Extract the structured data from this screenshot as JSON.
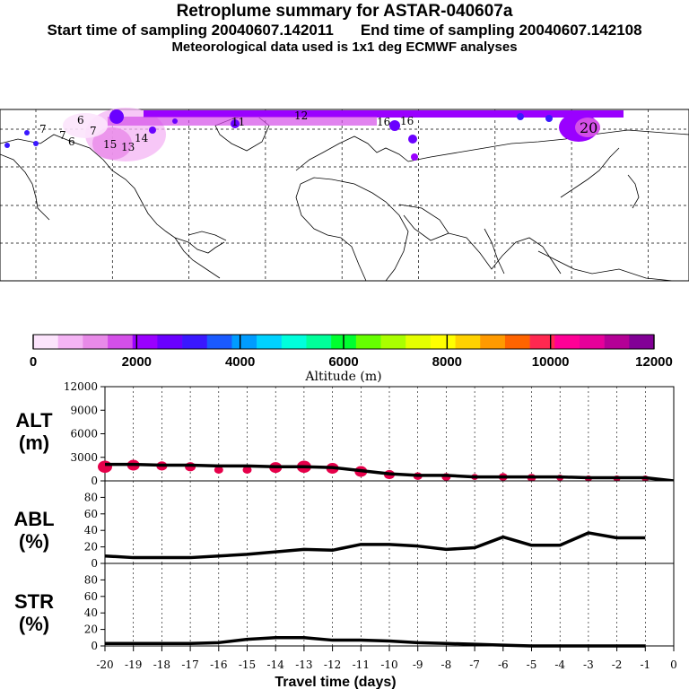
{
  "header": {
    "title": "Retroplume summary for ASTAR-040607a",
    "start_label": "Start time of sampling 20040607.142011",
    "end_label": "End time of sampling 20040607.142108",
    "met_label": "Meteorological data used is 1x1 deg ECMWF analyses"
  },
  "colorbar": {
    "title": "Altitude (m)",
    "tick_labels": [
      "0",
      "2000",
      "4000",
      "6000",
      "8000",
      "10000",
      "12000"
    ],
    "colors": [
      "#fce4fc",
      "#f4b4f4",
      "#e88ae8",
      "#d44fe8",
      "#9a00ff",
      "#6a00ff",
      "#3a18ff",
      "#1a5aff",
      "#009cff",
      "#00d2ff",
      "#00ffdc",
      "#00ff9a",
      "#00ff30",
      "#66ff00",
      "#aaff00",
      "#e4ff00",
      "#ffff00",
      "#ffd200",
      "#ff9a00",
      "#ff6400",
      "#ff2850",
      "#ff0096",
      "#e6009a",
      "#b40096",
      "#820096"
    ]
  },
  "map": {
    "plume_labels": [
      "6",
      "7",
      "7",
      "6",
      "7",
      "11",
      "12",
      "15",
      "13",
      "14",
      "16",
      "20",
      "16"
    ]
  },
  "chart_data": [
    {
      "type": "line",
      "name": "ALT",
      "ylabel_line1": "ALT",
      "ylabel_line2": "(m)",
      "x": [
        -20,
        -19,
        -18,
        -17,
        -16,
        -15,
        -14,
        -13,
        -12,
        -11,
        -10,
        -9,
        -8,
        -7,
        -6,
        -5,
        -4,
        -3,
        -2,
        -1,
        0
      ],
      "values": [
        2100,
        2100,
        2000,
        2000,
        1900,
        1900,
        1800,
        1800,
        1700,
        1300,
        900,
        700,
        700,
        500,
        500,
        500,
        500,
        400,
        400,
        400,
        0
      ],
      "ylim": [
        0,
        12000
      ],
      "yticks": [
        "0",
        "3000",
        "6000",
        "9000",
        "12000"
      ],
      "scatter": {
        "x": [
          -20,
          -19,
          -18,
          -17,
          -16,
          -15,
          -14,
          -13,
          -12,
          -11,
          -10,
          -9,
          -8,
          -7,
          -6,
          -5,
          -4,
          -3,
          -2,
          -1
        ],
        "values": [
          1800,
          2000,
          1900,
          1800,
          1400,
          1400,
          1700,
          1800,
          1600,
          1200,
          800,
          600,
          500,
          500,
          500,
          400,
          400,
          300,
          300,
          300
        ],
        "sizes": [
          8,
          7,
          6,
          6,
          5,
          5,
          7,
          8,
          7,
          7,
          6,
          5,
          5,
          4,
          5,
          5,
          4,
          4,
          4,
          4
        ]
      }
    },
    {
      "type": "line",
      "name": "ABL",
      "ylabel_line1": "ABL",
      "ylabel_line2": "(%)",
      "x": [
        -20,
        -19,
        -18,
        -17,
        -16,
        -15,
        -14,
        -13,
        -12,
        -11,
        -10,
        -9,
        -8,
        -7,
        -6,
        -5,
        -4,
        -3,
        -2,
        -1
      ],
      "values": [
        9,
        7,
        7,
        7,
        9,
        11,
        14,
        17,
        16,
        23,
        23,
        21,
        17,
        19,
        32,
        22,
        22,
        37,
        31,
        31
      ],
      "ylim": [
        0,
        100
      ],
      "yticks": [
        "0",
        "20",
        "40",
        "60",
        "80"
      ]
    },
    {
      "type": "line",
      "name": "STR",
      "ylabel_line1": "STR",
      "ylabel_line2": "(%)",
      "x": [
        -20,
        -19,
        -18,
        -17,
        -16,
        -15,
        -14,
        -13,
        -12,
        -11,
        -10,
        -9,
        -8,
        -7,
        -6,
        -5,
        -4,
        -3,
        -2,
        -1
      ],
      "values": [
        3,
        3,
        3,
        3,
        4,
        8,
        10,
        10,
        7,
        7,
        6,
        4,
        3,
        2,
        1,
        0,
        0,
        0,
        0,
        0
      ],
      "ylim": [
        0,
        100
      ],
      "yticks": [
        "0",
        "20",
        "40",
        "60",
        "80"
      ]
    }
  ],
  "xaxis": {
    "label": "Travel time (days)",
    "tick_labels": [
      "-20",
      "-19",
      "-18",
      "-17",
      "-16",
      "-15",
      "-14",
      "-13",
      "-12",
      "-11",
      "-10",
      "-9",
      "-8",
      "-7",
      "-6",
      "-5",
      "-4",
      "-3",
      "-2",
      "-1",
      "0"
    ]
  }
}
